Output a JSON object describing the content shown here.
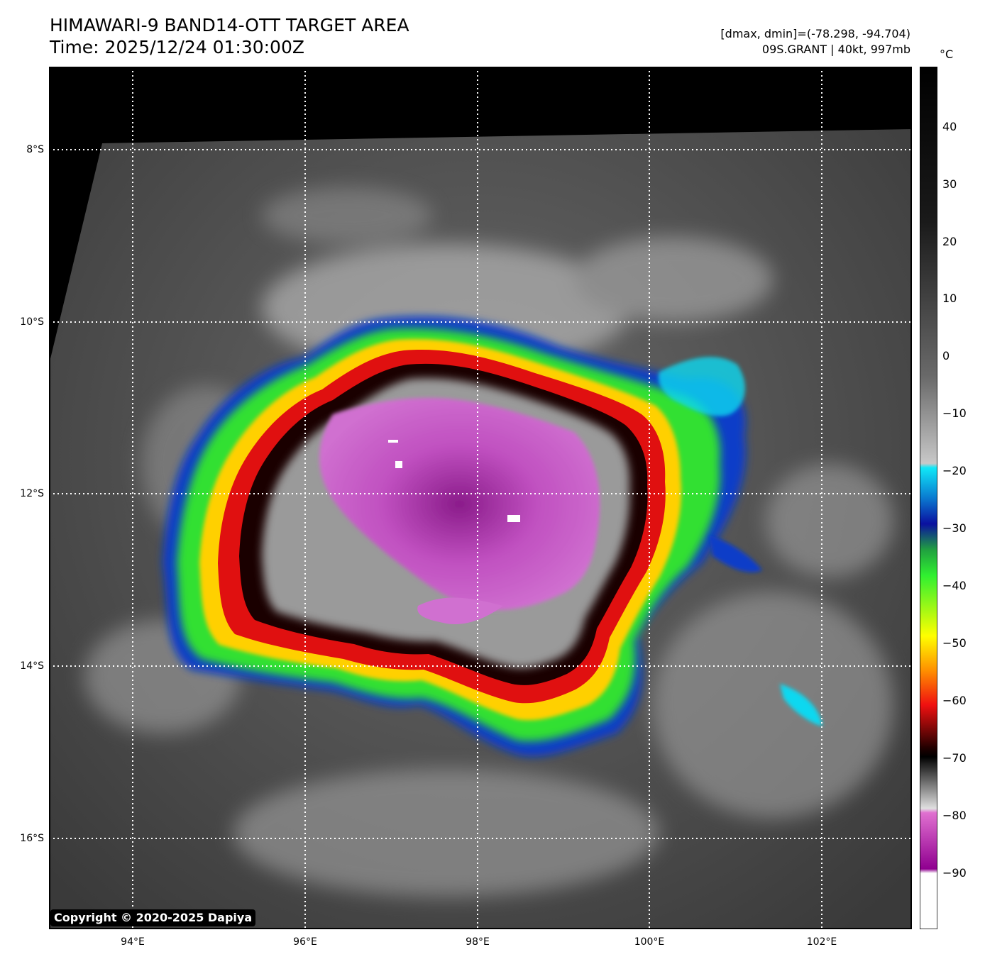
{
  "header": {
    "title_line1": "HIMAWARI-9 BAND14-OTT TARGET AREA",
    "title_line2": "Time: 2025/12/24 01:30:00Z",
    "info_line1": "[dmax, dmin]=(-78.298, -94.704)",
    "info_line2": "09S.GRANT | 40kt, 997mb"
  },
  "map": {
    "lat_labels": [
      "8°S",
      "10°S",
      "12°S",
      "14°S",
      "16°S"
    ],
    "lon_labels": [
      "94°E",
      "96°E",
      "98°E",
      "100°E",
      "102°E"
    ],
    "copyright": "Copyright © 2020-2025 Dapiya"
  },
  "colorbar": {
    "unit": "°C",
    "ticks": [
      "40",
      "30",
      "20",
      "10",
      "0",
      "−10",
      "−20",
      "−30",
      "−40",
      "−50",
      "−60",
      "−70",
      "−80",
      "−90"
    ],
    "range": [
      -100,
      50
    ]
  },
  "colors": {
    "cold_top": "#b03cb0",
    "ring_red": "#e01010",
    "ring_green": "#30e030",
    "edge_blue": "#0a3cc8",
    "cyan": "#10d8f0",
    "space": "#000000"
  }
}
